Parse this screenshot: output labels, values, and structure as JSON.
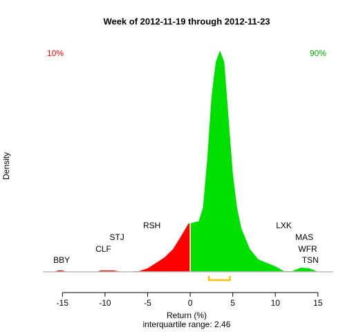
{
  "chart_data": {
    "type": "area",
    "title": "Week of 2012-11-19 through 2012-11-23",
    "x_label": "Return (%)",
    "y_label": "Density",
    "subtitle": "interquartile range: 2.46",
    "xlim": [
      -17.3,
      16.8
    ],
    "xticks": [
      -15,
      -10,
      -5,
      0,
      5,
      10,
      15
    ],
    "ylim": [
      0,
      0.17
    ],
    "series": [
      {
        "color": "#ff0000",
        "x": [
          -16,
          -15.5,
          -15,
          -14.5,
          -13,
          -11,
          -10.5,
          -9,
          -8,
          -6,
          -5,
          -4,
          -3,
          -2,
          -1,
          -0.2,
          0
        ],
        "values": [
          0,
          0.001,
          0.001,
          0,
          0,
          0,
          0.001,
          0.001,
          0,
          0.0005,
          0.0026,
          0.0066,
          0.0107,
          0.0169,
          0.0271,
          0.0357,
          0.0357
        ]
      },
      {
        "color": "#00e000",
        "x": [
          0,
          0.3,
          1,
          1.5,
          2,
          2.5,
          3,
          3.5,
          4,
          4.5,
          5,
          5.5,
          6,
          7,
          8,
          9,
          10,
          11,
          12,
          13,
          14,
          15,
          16
        ],
        "values": [
          0.0357,
          0.0363,
          0.0373,
          0.0475,
          0.0832,
          0.1292,
          0.1548,
          0.1634,
          0.1548,
          0.1139,
          0.0731,
          0.0475,
          0.0322,
          0.0169,
          0.0092,
          0.0066,
          0.0041,
          0.0005,
          0.0005,
          0.0031,
          0.0026,
          0,
          0
        ]
      }
    ],
    "corner_labels": [
      {
        "text": "10%",
        "color": "#ff0000"
      },
      {
        "text": "90%",
        "color": "#00b000"
      }
    ],
    "annotations": [
      {
        "text": "BBY",
        "x": -15.1
      },
      {
        "text": "CLF",
        "x": -10.2
      },
      {
        "text": "STJ",
        "x": -8.6
      },
      {
        "text": "RSH",
        "x": -4.5
      },
      {
        "text": "LXK",
        "x": 11
      },
      {
        "text": "MAS",
        "x": 13.4
      },
      {
        "text": "WFR",
        "x": 13.8
      },
      {
        "text": "TSN",
        "x": 14.1
      }
    ],
    "quartiles": [
      2.2,
      4.66
    ],
    "quartile_color": "#ffc000"
  }
}
